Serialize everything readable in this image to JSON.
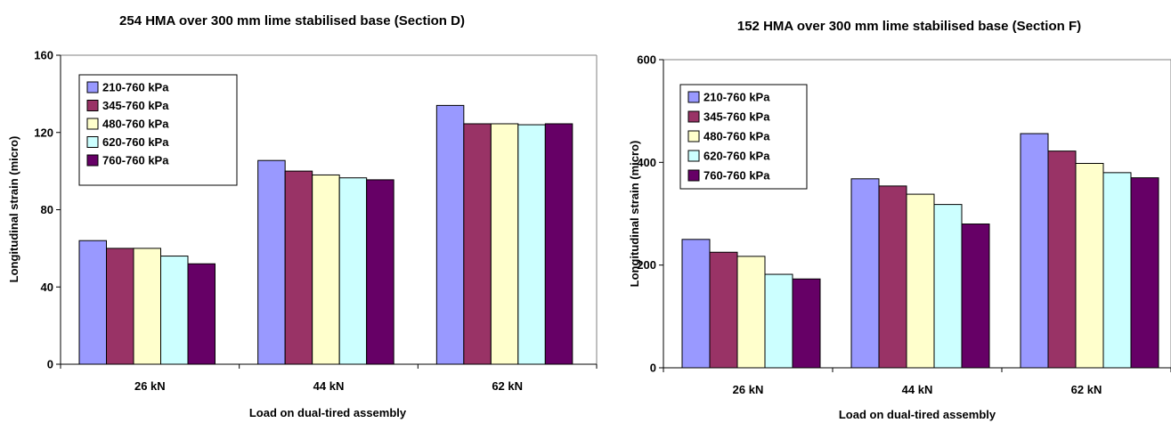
{
  "chart_data": [
    {
      "type": "bar",
      "title": "254 HMA over 300 mm lime stabilised base (Section D)",
      "xlabel": "Load on dual-tired assembly",
      "ylabel": "Longitudinal strain (micro)",
      "categories": [
        "26 kN",
        "44 kN",
        "62 kN"
      ],
      "ylim": [
        0,
        160
      ],
      "yticks": [
        "0",
        "40",
        "80",
        "120",
        "160"
      ],
      "grid": false,
      "legend_position": "top-left",
      "series": [
        {
          "name": "210-760 kPa",
          "color": "#9999ff",
          "values": [
            64,
            105.5,
            134
          ]
        },
        {
          "name": "345-760 kPa",
          "color": "#993366",
          "values": [
            60,
            100,
            124.5
          ]
        },
        {
          "name": "480-760 kPa",
          "color": "#ffffcc",
          "values": [
            60,
            98,
            124.5
          ]
        },
        {
          "name": "620-760 kPa",
          "color": "#ccffff",
          "values": [
            56,
            96.5,
            124
          ]
        },
        {
          "name": "760-760 kPa",
          "color": "#660066",
          "values": [
            52,
            95.5,
            124.5
          ]
        }
      ]
    },
    {
      "type": "bar",
      "title": "152 HMA over 300 mm lime stabilised base (Section F)",
      "xlabel": "Load on dual-tired assembly",
      "ylabel": "Longitudinal strain (micro)",
      "categories": [
        "26 kN",
        "44 kN",
        "62 kN"
      ],
      "ylim": [
        0,
        600
      ],
      "yticks": [
        "0",
        "200",
        "400",
        "600"
      ],
      "grid": false,
      "legend_position": "top-left",
      "series": [
        {
          "name": "210-760 kPa",
          "color": "#9999ff",
          "values": [
            250,
            368,
            456
          ]
        },
        {
          "name": "345-760 kPa",
          "color": "#993366",
          "values": [
            225,
            354,
            422
          ]
        },
        {
          "name": "480-760 kPa",
          "color": "#ffffcc",
          "values": [
            217,
            338,
            398
          ]
        },
        {
          "name": "620-760 kPa",
          "color": "#ccffff",
          "values": [
            182,
            318,
            380
          ]
        },
        {
          "name": "760-760 kPa",
          "color": "#660066",
          "values": [
            173,
            280,
            370
          ]
        }
      ]
    }
  ]
}
